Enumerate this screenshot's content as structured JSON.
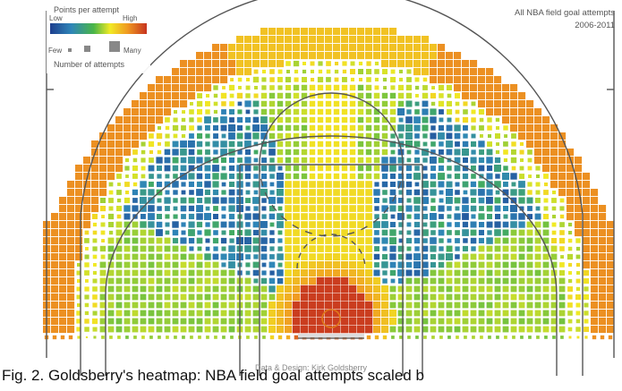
{
  "chart_data": {
    "type": "heatmap",
    "title": "All NBA field goal attempts",
    "subtitle": "2006-2011",
    "legend": {
      "color_title": "Points per attempt",
      "color_low": "Low",
      "color_high": "High",
      "size_low": "Few",
      "size_high": "Many",
      "size_title": "Number of attempts",
      "colors": [
        "#1e3f8f",
        "#2f86b8",
        "#49b548",
        "#f1ea24",
        "#f09a22",
        "#c6331f"
      ]
    },
    "zones": [
      {
        "zone": "at-rim",
        "points_per_attempt_level": "high",
        "color": "#c6331f"
      },
      {
        "zone": "paint",
        "points_per_attempt_level": "medium-high",
        "color": "#f1ea24"
      },
      {
        "zone": "baseline-midrange",
        "points_per_attempt_level": "medium",
        "color": "#49b548"
      },
      {
        "zone": "wing-midrange",
        "points_per_attempt_level": "low",
        "color": "#1e3f8f"
      },
      {
        "zone": "top-of-key-long-two",
        "points_per_attempt_level": "medium",
        "color": "#49b548"
      },
      {
        "zone": "corner-three",
        "points_per_attempt_level": "high",
        "color": "#d2581f"
      },
      {
        "zone": "above-break-three",
        "points_per_attempt_level": "medium-high",
        "color": "#e8902a"
      }
    ],
    "credit": "Data & Design: Kirk Goldsberry"
  },
  "caption": "Fig. 2. Goldsberry's heatmap: NBA field goal attempts scaled b"
}
